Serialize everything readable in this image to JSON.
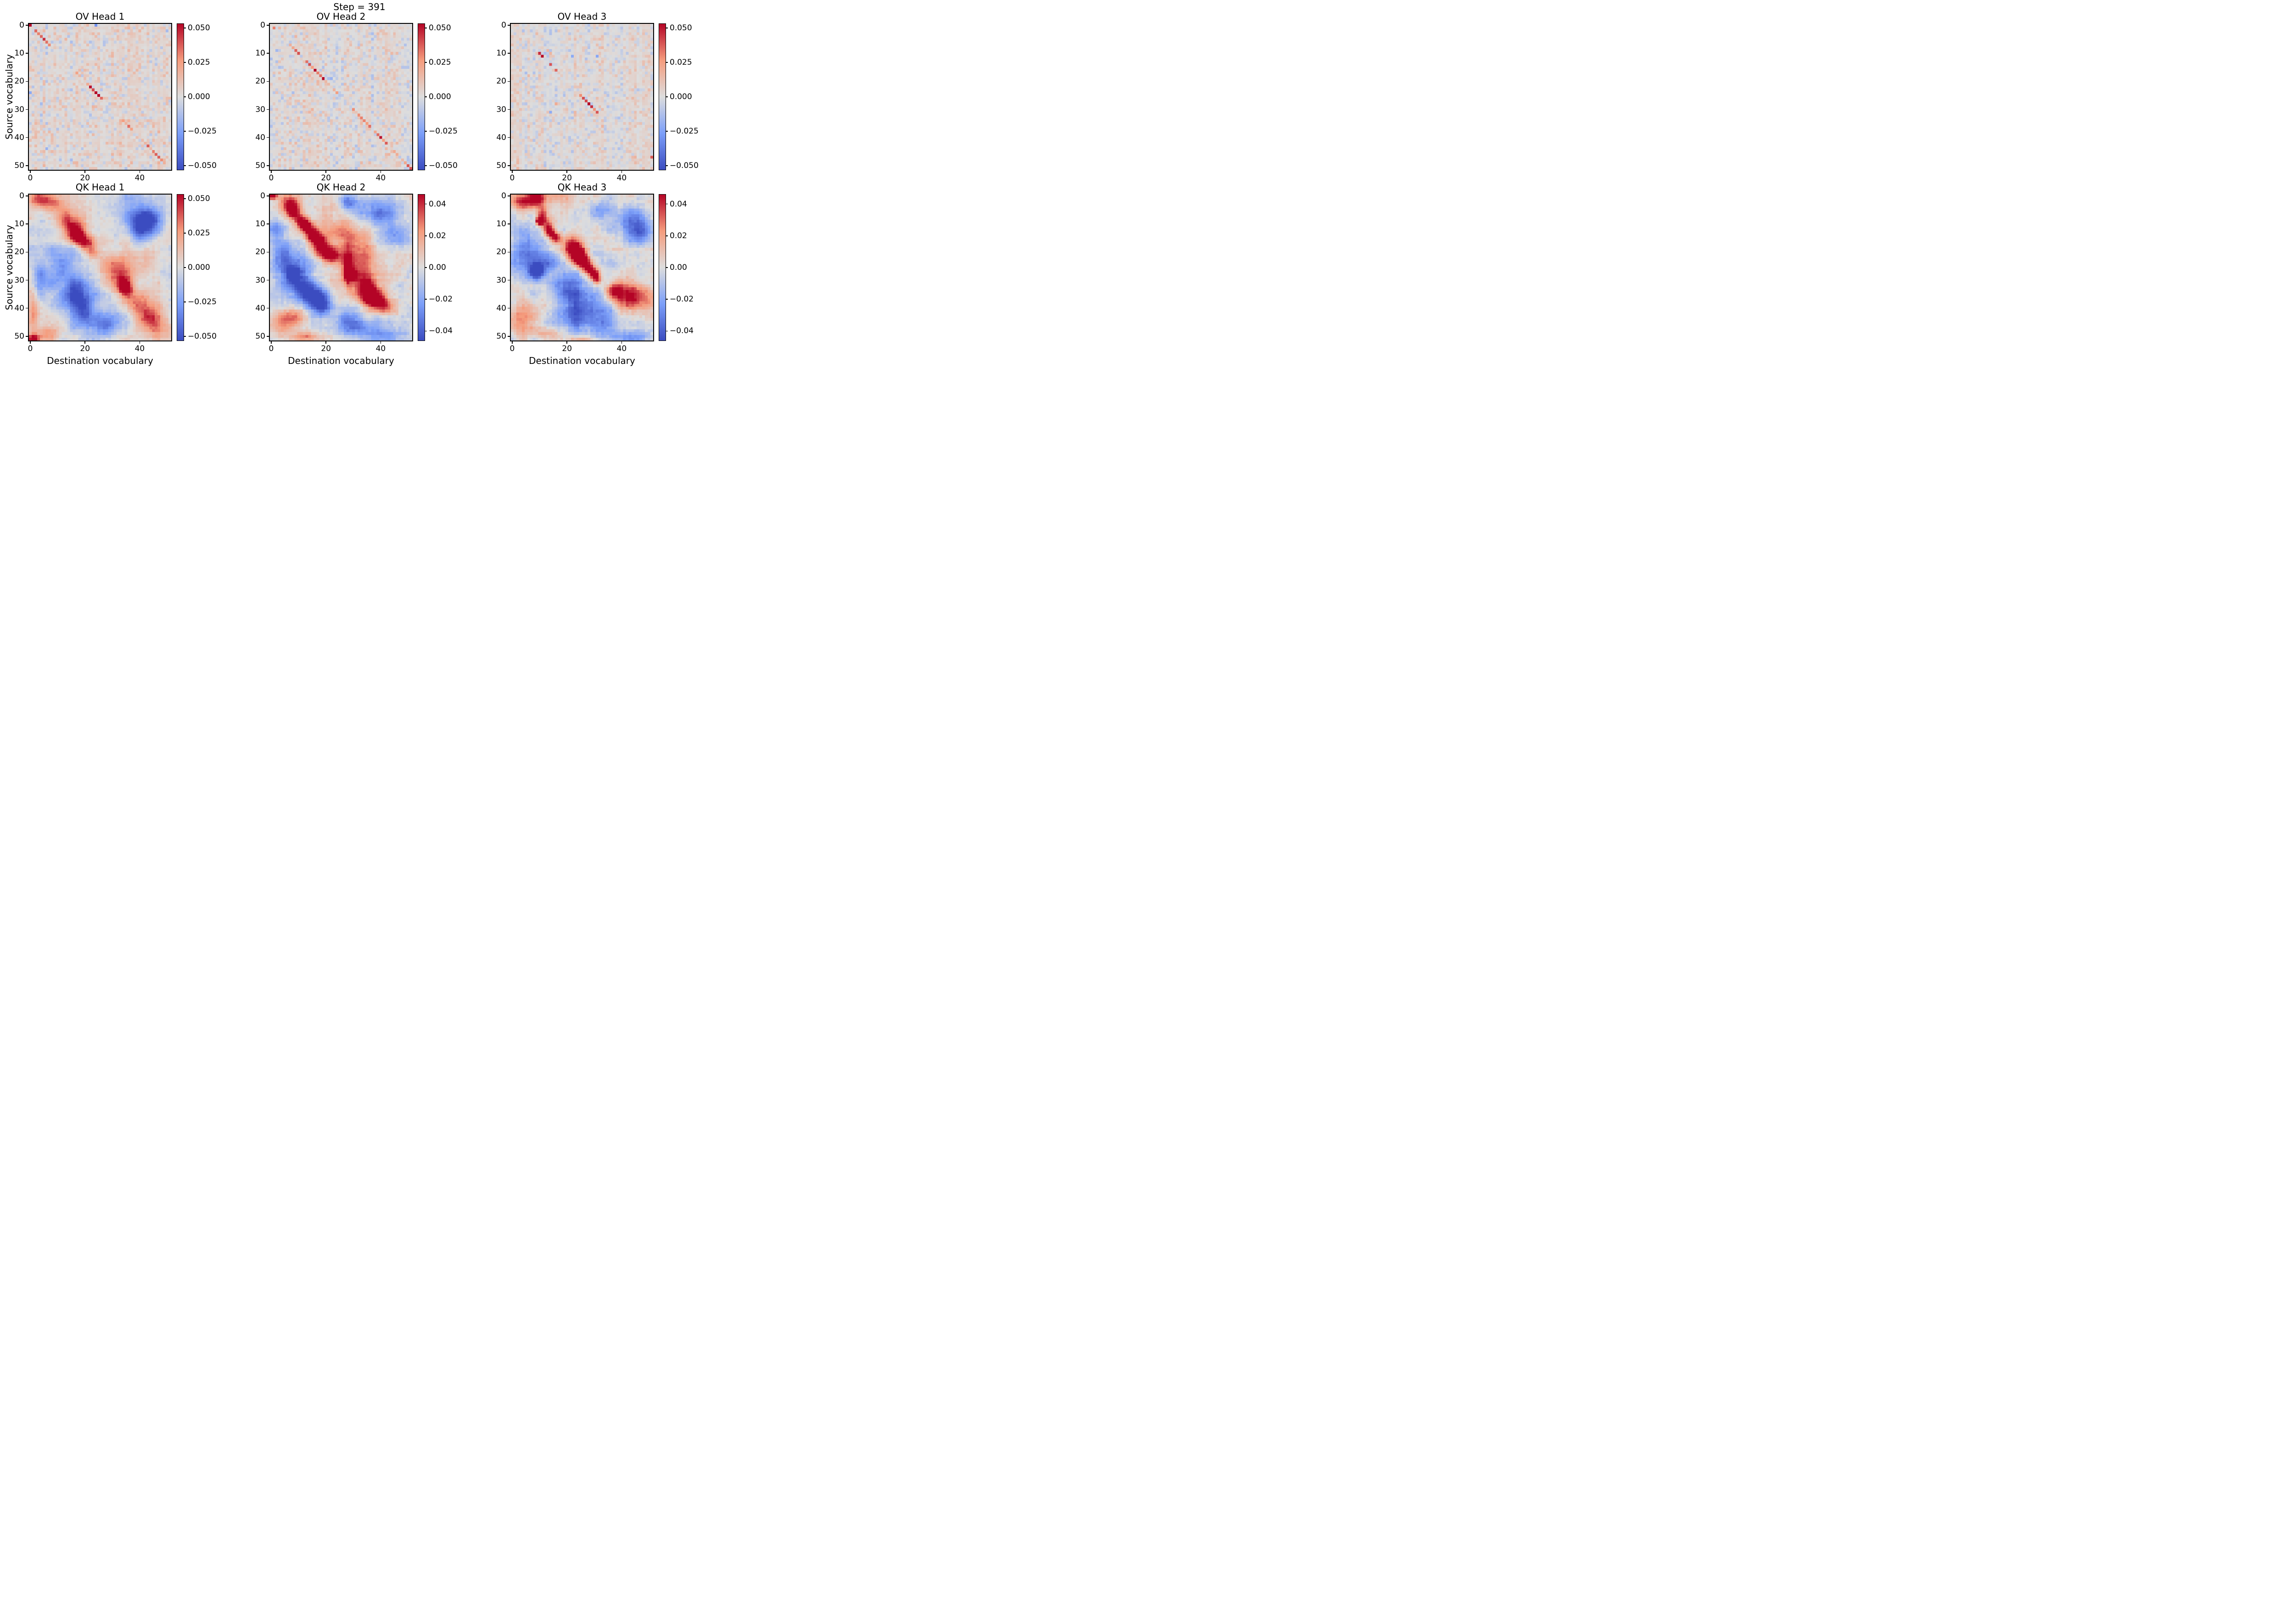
{
  "figure": {
    "suptitle": "Step = 391"
  },
  "axes": {
    "x_label": "Destination vocabulary",
    "y_label": "Source vocabulary",
    "x_ticks": [
      0,
      20,
      40
    ],
    "y_ticks": [
      0,
      10,
      20,
      30,
      40,
      50
    ]
  },
  "colormap": {
    "name": "coolwarm",
    "stops": [
      [
        0.0,
        "#3b4cc0"
      ],
      [
        0.25,
        "#7c9ff9"
      ],
      [
        0.5,
        "#dddddd"
      ],
      [
        0.75,
        "#f59c7d"
      ],
      [
        1.0,
        "#b40426"
      ]
    ]
  },
  "chart_data": [
    {
      "type": "heatmap",
      "title": "OV Head 1",
      "row": 0,
      "col": 0,
      "n": 52,
      "vmin": -0.053,
      "vmax": 0.053,
      "seed": 11,
      "colorbar": {
        "tick_labels": [
          "0.050",
          "0.025",
          "0.000",
          "−0.025",
          "−0.050"
        ],
        "tick_values": [
          0.05,
          0.025,
          0.0,
          -0.025,
          -0.05
        ]
      },
      "noise": {
        "bias": 0.0018,
        "cell": 0.004,
        "col": 0.0042,
        "row": 0.0016,
        "smooth": 0
      },
      "diag": [
        [
          2,
          0.022
        ],
        [
          3,
          0.03
        ],
        [
          4,
          0.048
        ],
        [
          5,
          0.032
        ],
        [
          6,
          0.026
        ],
        [
          7,
          0.02
        ],
        [
          17,
          0.02
        ],
        [
          21,
          0.028
        ],
        [
          22,
          0.042
        ],
        [
          23,
          0.038
        ],
        [
          24,
          0.07
        ],
        [
          25,
          0.05
        ],
        [
          26,
          0.022
        ],
        [
          34,
          0.022
        ],
        [
          35,
          0.016
        ],
        [
          36,
          0.038
        ],
        [
          37,
          0.02
        ],
        [
          42,
          0.014
        ],
        [
          43,
          0.02
        ],
        [
          44,
          0.016
        ],
        [
          45,
          0.026
        ],
        [
          46,
          0.022
        ],
        [
          47,
          0.032
        ],
        [
          48,
          0.026
        ],
        [
          49,
          0.018
        ]
      ],
      "spots": [
        [
          0,
          0,
          0.08
        ],
        [
          0,
          24,
          -0.022
        ],
        [
          24,
          0,
          -0.025
        ],
        [
          2,
          50,
          -0.014
        ],
        [
          14,
          46,
          -0.014
        ],
        [
          44,
          6,
          -0.016
        ]
      ],
      "blobs": []
    },
    {
      "type": "heatmap",
      "title": "OV Head 2",
      "row": 0,
      "col": 1,
      "n": 52,
      "vmin": -0.053,
      "vmax": 0.053,
      "seed": 22,
      "colorbar": {
        "tick_labels": [
          "0.050",
          "0.025",
          "0.000",
          "−0.025",
          "−0.050"
        ],
        "tick_values": [
          0.05,
          0.025,
          0.0,
          -0.025,
          -0.05
        ]
      },
      "noise": {
        "bias": 0.0016,
        "cell": 0.004,
        "col": 0.004,
        "row": 0.0016,
        "smooth": 0
      },
      "diag": [
        [
          1,
          0.035
        ],
        [
          7,
          0.016
        ],
        [
          8,
          0.02
        ],
        [
          9,
          0.032
        ],
        [
          10,
          0.036
        ],
        [
          13,
          0.032
        ],
        [
          14,
          0.036
        ],
        [
          15,
          0.022
        ],
        [
          16,
          0.055
        ],
        [
          17,
          0.026
        ],
        [
          18,
          0.038
        ],
        [
          19,
          0.065
        ],
        [
          20,
          0.022
        ],
        [
          21,
          0.016
        ],
        [
          22,
          0.014
        ],
        [
          23,
          0.015
        ],
        [
          24,
          0.028
        ],
        [
          30,
          0.016
        ],
        [
          31,
          0.02
        ],
        [
          32,
          0.022
        ],
        [
          33,
          0.026
        ],
        [
          34,
          0.032
        ],
        [
          35,
          0.022
        ],
        [
          36,
          0.032
        ],
        [
          38,
          0.022
        ],
        [
          39,
          0.032
        ],
        [
          40,
          0.036
        ],
        [
          41,
          0.026
        ],
        [
          42,
          0.032
        ],
        [
          45,
          0.016
        ],
        [
          46,
          0.016
        ],
        [
          48,
          0.02
        ],
        [
          49,
          0.03
        ],
        [
          50,
          0.036
        ],
        [
          51,
          0.042
        ]
      ],
      "spots": [
        [
          19,
          21,
          -0.02
        ],
        [
          19,
          22,
          -0.018
        ],
        [
          15,
          3,
          -0.015
        ],
        [
          44,
          24,
          -0.014
        ],
        [
          9,
          2,
          -0.014
        ]
      ],
      "blobs": []
    },
    {
      "type": "heatmap",
      "title": "OV Head 3",
      "row": 0,
      "col": 2,
      "n": 52,
      "vmin": -0.053,
      "vmax": 0.053,
      "seed": 33,
      "colorbar": {
        "tick_labels": [
          "0.050",
          "0.025",
          "0.000",
          "−0.025",
          "−0.050"
        ],
        "tick_values": [
          0.05,
          0.025,
          0.0,
          -0.025,
          -0.05
        ]
      },
      "noise": {
        "bias": 0.0016,
        "cell": 0.0035,
        "col": 0.004,
        "row": 0.0016,
        "smooth": 0
      },
      "diag": [
        [
          10,
          0.042
        ],
        [
          11,
          0.052
        ],
        [
          14,
          0.036
        ],
        [
          16,
          0.036
        ],
        [
          25,
          0.026
        ],
        [
          26,
          0.036
        ],
        [
          27,
          0.04
        ],
        [
          28,
          0.062
        ],
        [
          29,
          0.046
        ],
        [
          30,
          0.02
        ],
        [
          31,
          0.042
        ]
      ],
      "spots": [
        [
          47,
          51,
          0.038
        ],
        [
          11,
          31,
          -0.022
        ],
        [
          31,
          14,
          -0.02
        ],
        [
          10,
          14,
          0.018
        ],
        [
          9,
          13,
          0.016
        ],
        [
          28,
          16,
          0.015
        ],
        [
          3,
          9,
          0.014
        ],
        [
          11,
          22,
          -0.015
        ]
      ],
      "blobs": []
    },
    {
      "type": "heatmap",
      "title": "QK Head 1",
      "row": 1,
      "col": 0,
      "n": 52,
      "vmin": -0.053,
      "vmax": 0.053,
      "seed": 44,
      "colorbar": {
        "tick_labels": [
          "0.050",
          "0.025",
          "0.000",
          "−0.025",
          "−0.050"
        ],
        "tick_values": [
          0.05,
          0.025,
          0.0,
          -0.025,
          -0.05
        ]
      },
      "noise": {
        "bias": 0.0,
        "cell": 0.0015,
        "col": 0.0018,
        "row": 0.002,
        "smooth": 0.006
      },
      "diag": [],
      "spots": [],
      "blobs": [
        [
          1,
          3,
          2.2,
          2.8,
          0.045
        ],
        [
          3,
          8,
          2.0,
          2.5,
          0.035
        ],
        [
          8,
          13,
          2.5,
          2.5,
          0.03
        ],
        [
          12,
          16,
          3.0,
          3.0,
          0.05
        ],
        [
          14,
          17,
          1.5,
          1.5,
          0.06
        ],
        [
          17,
          20,
          2.2,
          2.2,
          0.048
        ],
        [
          20,
          23,
          1.8,
          1.8,
          0.034
        ],
        [
          27,
          32,
          3.5,
          3.5,
          0.026
        ],
        [
          31,
          34,
          2.5,
          2.5,
          0.04
        ],
        [
          33,
          35,
          1.5,
          1.5,
          0.046
        ],
        [
          37,
          39,
          3.0,
          4.0,
          0.03
        ],
        [
          43,
          43,
          3.0,
          3.5,
          0.034
        ],
        [
          47,
          46,
          2.5,
          3.0,
          0.032
        ],
        [
          24,
          27,
          3.0,
          3.0,
          0.015
        ],
        [
          22,
          40,
          4.0,
          6.0,
          0.012
        ],
        [
          5,
          39,
          5.0,
          5.0,
          -0.026
        ],
        [
          11,
          41,
          3.5,
          3.5,
          -0.04
        ],
        [
          9,
          44,
          3.0,
          3.0,
          -0.03
        ],
        [
          26,
          12,
          7.0,
          7.0,
          -0.028
        ],
        [
          36,
          17,
          4.0,
          3.5,
          -0.042
        ],
        [
          40,
          20,
          4.0,
          3.0,
          -0.028
        ],
        [
          45,
          24,
          3.5,
          5.0,
          -0.022
        ],
        [
          30,
          3,
          5.0,
          2.0,
          -0.02
        ],
        [
          46,
          29,
          3.0,
          4.0,
          -0.02
        ],
        [
          41,
          1,
          7.0,
          1.3,
          0.028
        ],
        [
          51,
          1,
          1.2,
          1.8,
          0.06
        ],
        [
          49,
          6,
          2.0,
          3.0,
          0.024
        ]
      ]
    },
    {
      "type": "heatmap",
      "title": "QK Head 2",
      "row": 1,
      "col": 1,
      "n": 52,
      "vmin": -0.046,
      "vmax": 0.046,
      "seed": 55,
      "colorbar": {
        "tick_labels": [
          "0.04",
          "0.02",
          "0.00",
          "−0.02",
          "−0.04"
        ],
        "tick_values": [
          0.04,
          0.02,
          0.0,
          -0.02,
          -0.04
        ]
      },
      "noise": {
        "bias": 0.0,
        "cell": 0.0015,
        "col": 0.002,
        "row": 0.002,
        "smooth": 0.005
      },
      "diag": [],
      "spots": [],
      "blobs": [
        [
          0,
          0,
          0.8,
          1.4,
          0.07
        ],
        [
          3,
          7,
          2.2,
          2.6,
          0.05
        ],
        [
          6,
          8,
          1.4,
          1.4,
          0.055
        ],
        [
          9,
          11,
          1.8,
          1.8,
          0.05
        ],
        [
          11,
          13,
          1.5,
          1.5,
          0.05
        ],
        [
          14,
          15,
          2.0,
          2.0,
          0.045
        ],
        [
          17,
          18,
          2.2,
          2.2,
          0.038
        ],
        [
          20,
          20,
          1.8,
          3.0,
          0.03
        ],
        [
          22,
          22,
          1.5,
          2.5,
          0.03
        ],
        [
          26,
          28,
          4.5,
          1.1,
          0.045
        ],
        [
          28,
          29,
          1.1,
          1.1,
          0.07
        ],
        [
          25,
          31,
          4.0,
          5.0,
          0.028
        ],
        [
          31,
          33,
          3.0,
          4.0,
          0.03
        ],
        [
          35,
          36,
          2.8,
          2.8,
          0.05
        ],
        [
          37,
          39,
          2.2,
          3.0,
          0.038
        ],
        [
          40,
          42,
          2.0,
          3.0,
          0.026
        ],
        [
          12,
          25,
          5.0,
          7.0,
          0.016
        ],
        [
          18,
          33,
          5.0,
          7.0,
          0.018
        ],
        [
          4,
          34,
          3.5,
          5.0,
          -0.024
        ],
        [
          6,
          42,
          3.0,
          4.0,
          -0.028
        ],
        [
          14,
          44,
          3.0,
          5.0,
          -0.03
        ],
        [
          2,
          28,
          2.0,
          2.0,
          -0.03
        ],
        [
          26,
          8,
          5.5,
          4.5,
          -0.034
        ],
        [
          28,
          8,
          1.6,
          1.6,
          -0.05
        ],
        [
          34,
          13,
          3.5,
          3.5,
          -0.04
        ],
        [
          37,
          17,
          2.8,
          2.8,
          -0.036
        ],
        [
          40,
          19,
          2.5,
          2.5,
          -0.028
        ],
        [
          21,
          4,
          4.5,
          2.5,
          -0.024
        ],
        [
          12,
          2,
          3.0,
          2.0,
          -0.02
        ],
        [
          47,
          33,
          2.5,
          7.0,
          -0.022
        ],
        [
          44,
          28,
          2.5,
          3.5,
          -0.02
        ],
        [
          50,
          44,
          1.5,
          5.0,
          -0.018
        ],
        [
          46,
          4,
          3.5,
          4.5,
          0.022
        ],
        [
          50,
          13,
          1.5,
          3.5,
          0.026
        ],
        [
          43,
          8,
          2.0,
          3.0,
          0.02
        ]
      ]
    },
    {
      "type": "heatmap",
      "title": "QK Head 3",
      "row": 1,
      "col": 2,
      "n": 52,
      "vmin": -0.046,
      "vmax": 0.046,
      "seed": 66,
      "colorbar": {
        "tick_labels": [
          "0.04",
          "0.02",
          "0.00",
          "−0.02",
          "−0.04"
        ],
        "tick_values": [
          0.04,
          0.02,
          0.0,
          -0.02,
          -0.04
        ]
      },
      "noise": {
        "bias": 0.0,
        "cell": 0.0015,
        "col": 0.002,
        "row": 0.0025,
        "smooth": 0.005
      },
      "diag": [],
      "spots": [],
      "blobs": [
        [
          2,
          4,
          2.0,
          3.5,
          0.04
        ],
        [
          1,
          9,
          1.8,
          1.8,
          0.042
        ],
        [
          0,
          14,
          1.5,
          5.0,
          0.022
        ],
        [
          7,
          11,
          2.0,
          1.3,
          0.045
        ],
        [
          9,
          10,
          0.9,
          0.9,
          0.075
        ],
        [
          11,
          13,
          2.0,
          1.3,
          0.04
        ],
        [
          13,
          14,
          1.2,
          1.2,
          0.042
        ],
        [
          15,
          16,
          1.3,
          1.3,
          0.045
        ],
        [
          18,
          22,
          2.5,
          2.2,
          0.045
        ],
        [
          21,
          24,
          2.5,
          2.2,
          0.05
        ],
        [
          23,
          26,
          2.0,
          1.8,
          0.05
        ],
        [
          26,
          28,
          1.8,
          1.8,
          0.046
        ],
        [
          28,
          30,
          1.4,
          1.4,
          0.042
        ],
        [
          30,
          31,
          1.2,
          1.2,
          0.035
        ],
        [
          34,
          42,
          3.0,
          6.0,
          0.026
        ],
        [
          37,
          44,
          3.0,
          5.0,
          0.026
        ],
        [
          34,
          37,
          2.0,
          2.0,
          0.03
        ],
        [
          20,
          5,
          6.0,
          5.0,
          -0.026
        ],
        [
          27,
          9,
          1.7,
          1.7,
          -0.055
        ],
        [
          24,
          12,
          3.0,
          3.0,
          -0.03
        ],
        [
          9,
          44,
          3.5,
          4.5,
          -0.03
        ],
        [
          13,
          47,
          2.5,
          3.0,
          -0.028
        ],
        [
          5,
          32,
          2.5,
          4.0,
          -0.016
        ],
        [
          37,
          25,
          7.0,
          7.0,
          -0.024
        ],
        [
          33,
          20,
          3.5,
          3.5,
          -0.022
        ],
        [
          44,
          31,
          4.0,
          5.0,
          -0.024
        ],
        [
          50,
          42,
          1.5,
          7.0,
          -0.02
        ],
        [
          43,
          21,
          3.0,
          3.0,
          -0.02
        ],
        [
          45,
          2,
          3.5,
          3.0,
          0.022
        ],
        [
          49,
          12,
          1.5,
          3.5,
          0.02
        ],
        [
          41,
          6,
          3.0,
          3.0,
          0.018
        ],
        [
          51,
          25,
          0.8,
          4.0,
          0.02
        ]
      ]
    }
  ]
}
